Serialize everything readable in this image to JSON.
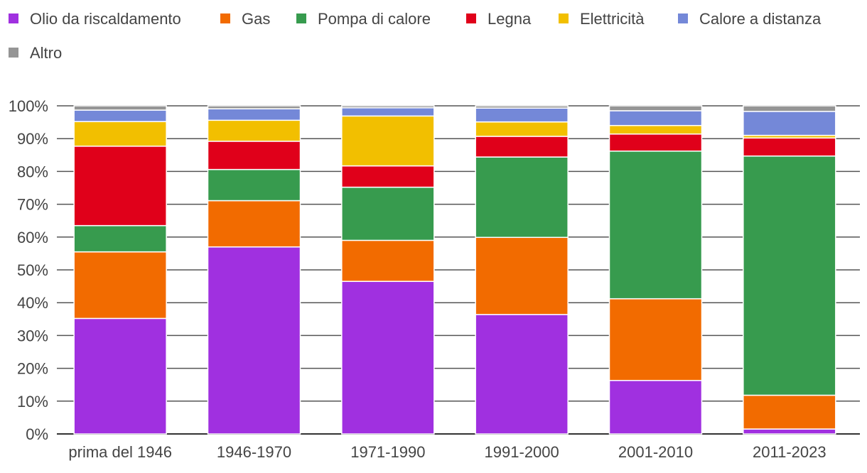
{
  "chart_data": {
    "type": "bar",
    "stacked": true,
    "title": "",
    "xlabel": "",
    "ylabel": "",
    "ylim": [
      0,
      100
    ],
    "yticks": [
      "0%",
      "10%",
      "20%",
      "30%",
      "40%",
      "50%",
      "60%",
      "70%",
      "80%",
      "90%",
      "100%"
    ],
    "legend_position": "top",
    "categories": [
      "prima del 1946",
      "1946-1970",
      "1971-1990",
      "1991-2000",
      "2001-2010",
      "2011-2023"
    ],
    "series": [
      {
        "name": "Olio da riscaldamento",
        "color": "#a030e0",
        "values": [
          35.2,
          57.0,
          46.5,
          36.4,
          16.3,
          1.5
        ]
      },
      {
        "name": "Gas",
        "color": "#f26b00",
        "values": [
          20.3,
          14.1,
          12.5,
          23.5,
          24.9,
          10.3
        ]
      },
      {
        "name": "Pompa di calore",
        "color": "#379b4e",
        "values": [
          8.0,
          9.5,
          16.2,
          24.5,
          45.0,
          72.9
        ]
      },
      {
        "name": "Legna",
        "color": "#e0001a",
        "values": [
          24.2,
          8.6,
          6.5,
          6.3,
          5.2,
          5.5
        ]
      },
      {
        "name": "Elettricità",
        "color": "#f2bf00",
        "values": [
          7.5,
          6.4,
          15.2,
          4.4,
          2.6,
          0.8
        ]
      },
      {
        "name": "Calore a distanza",
        "color": "#7488d8",
        "values": [
          3.5,
          3.5,
          2.5,
          4.2,
          4.5,
          7.3
        ]
      },
      {
        "name": "Altro",
        "color": "#959595",
        "values": [
          1.3,
          0.9,
          0.6,
          0.7,
          1.5,
          1.7
        ]
      }
    ]
  }
}
